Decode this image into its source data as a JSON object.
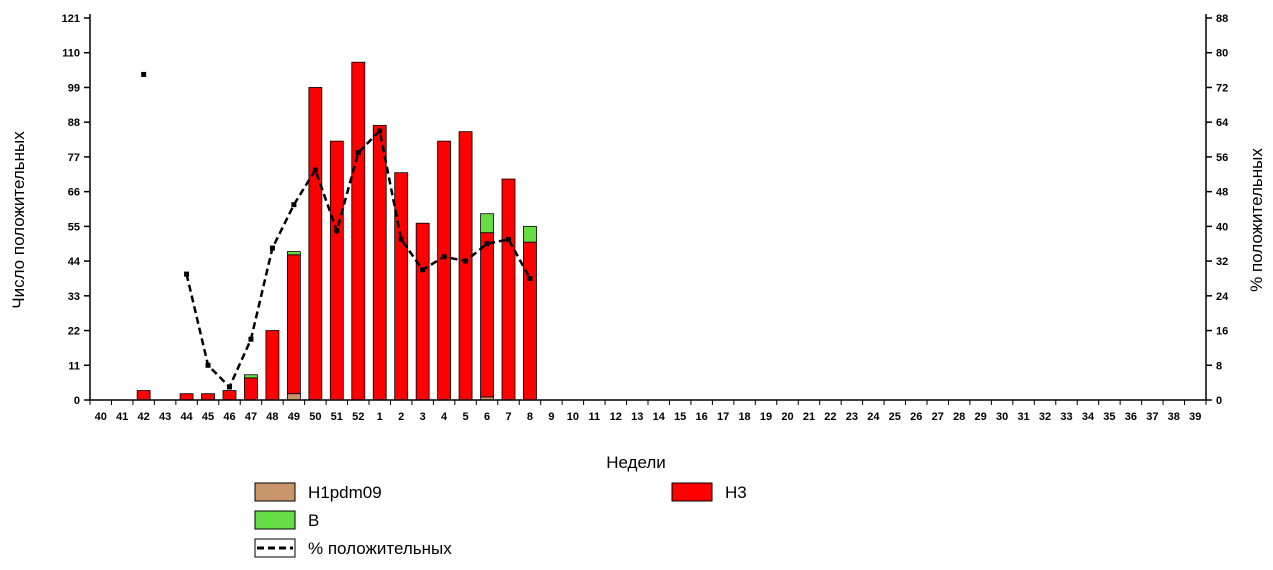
{
  "chart_data": {
    "type": "bar",
    "stacked": true,
    "categories": [
      "40",
      "41",
      "42",
      "43",
      "44",
      "45",
      "46",
      "47",
      "48",
      "49",
      "50",
      "51",
      "52",
      "1",
      "2",
      "3",
      "4",
      "5",
      "6",
      "7",
      "8",
      "9",
      "10",
      "11",
      "12",
      "13",
      "14",
      "15",
      "16",
      "17",
      "18",
      "19",
      "20",
      "21",
      "22",
      "23",
      "24",
      "25",
      "26",
      "27",
      "28",
      "29",
      "30",
      "31",
      "32",
      "33",
      "34",
      "35",
      "36",
      "37",
      "38",
      "39"
    ],
    "xlabel": "Недели",
    "ylabel": "Число положительных",
    "y2label": "% положительных",
    "ylim": [
      0,
      121
    ],
    "y2lim": [
      0,
      88
    ],
    "yticks": [
      0,
      11,
      22,
      33,
      44,
      55,
      66,
      77,
      88,
      99,
      110,
      121
    ],
    "y2ticks": [
      0,
      8,
      16,
      24,
      32,
      40,
      48,
      56,
      64,
      72,
      80,
      88
    ],
    "series": [
      {
        "name": "H1pdm09",
        "color": "#c8966a",
        "values": [
          0,
          0,
          0,
          0,
          0,
          0,
          0,
          0,
          0,
          2,
          0,
          0,
          0,
          0,
          0,
          0,
          0,
          0,
          1,
          0,
          0,
          0,
          0,
          0,
          0,
          0,
          0,
          0,
          0,
          0,
          0,
          0,
          0,
          0,
          0,
          0,
          0,
          0,
          0,
          0,
          0,
          0,
          0,
          0,
          0,
          0,
          0,
          0,
          0,
          0,
          0,
          0
        ]
      },
      {
        "name": "H3",
        "color": "#ff0000",
        "values": [
          0,
          0,
          3,
          0,
          2,
          2,
          3,
          7,
          22,
          44,
          99,
          82,
          107,
          87,
          72,
          56,
          82,
          85,
          52,
          70,
          50,
          0,
          0,
          0,
          0,
          0,
          0,
          0,
          0,
          0,
          0,
          0,
          0,
          0,
          0,
          0,
          0,
          0,
          0,
          0,
          0,
          0,
          0,
          0,
          0,
          0,
          0,
          0,
          0,
          0,
          0,
          0
        ]
      },
      {
        "name": "B",
        "color": "#66dd44",
        "values": [
          0,
          0,
          0,
          0,
          0,
          0,
          0,
          1,
          0,
          1,
          0,
          0,
          0,
          0,
          0,
          0,
          0,
          0,
          6,
          0,
          5,
          0,
          0,
          0,
          0,
          0,
          0,
          0,
          0,
          0,
          0,
          0,
          0,
          0,
          0,
          0,
          0,
          0,
          0,
          0,
          0,
          0,
          0,
          0,
          0,
          0,
          0,
          0,
          0,
          0,
          0,
          0
        ]
      },
      {
        "name": "% положительных",
        "type": "line",
        "axis": "right",
        "color": "#000000",
        "values": [
          null,
          null,
          75,
          null,
          29,
          8,
          3,
          14,
          35,
          45,
          53,
          39,
          57,
          62,
          37,
          30,
          33,
          32,
          36,
          37,
          28,
          null,
          null,
          null,
          null,
          null,
          null,
          null,
          null,
          null,
          null,
          null,
          null,
          null,
          null,
          null,
          null,
          null,
          null,
          null,
          null,
          null,
          null,
          null,
          null,
          null,
          null,
          null,
          null,
          null,
          null,
          null
        ]
      }
    ],
    "legend": {
      "placement": "bottom",
      "items": [
        {
          "label": "H1pdm09",
          "color": "#c8966a",
          "kind": "box"
        },
        {
          "label": "H3",
          "color": "#ff0000",
          "kind": "box"
        },
        {
          "label": "B",
          "color": "#66dd44",
          "kind": "box"
        },
        {
          "label": "% положительных",
          "color": "#000000",
          "kind": "dashed-line"
        }
      ]
    }
  }
}
